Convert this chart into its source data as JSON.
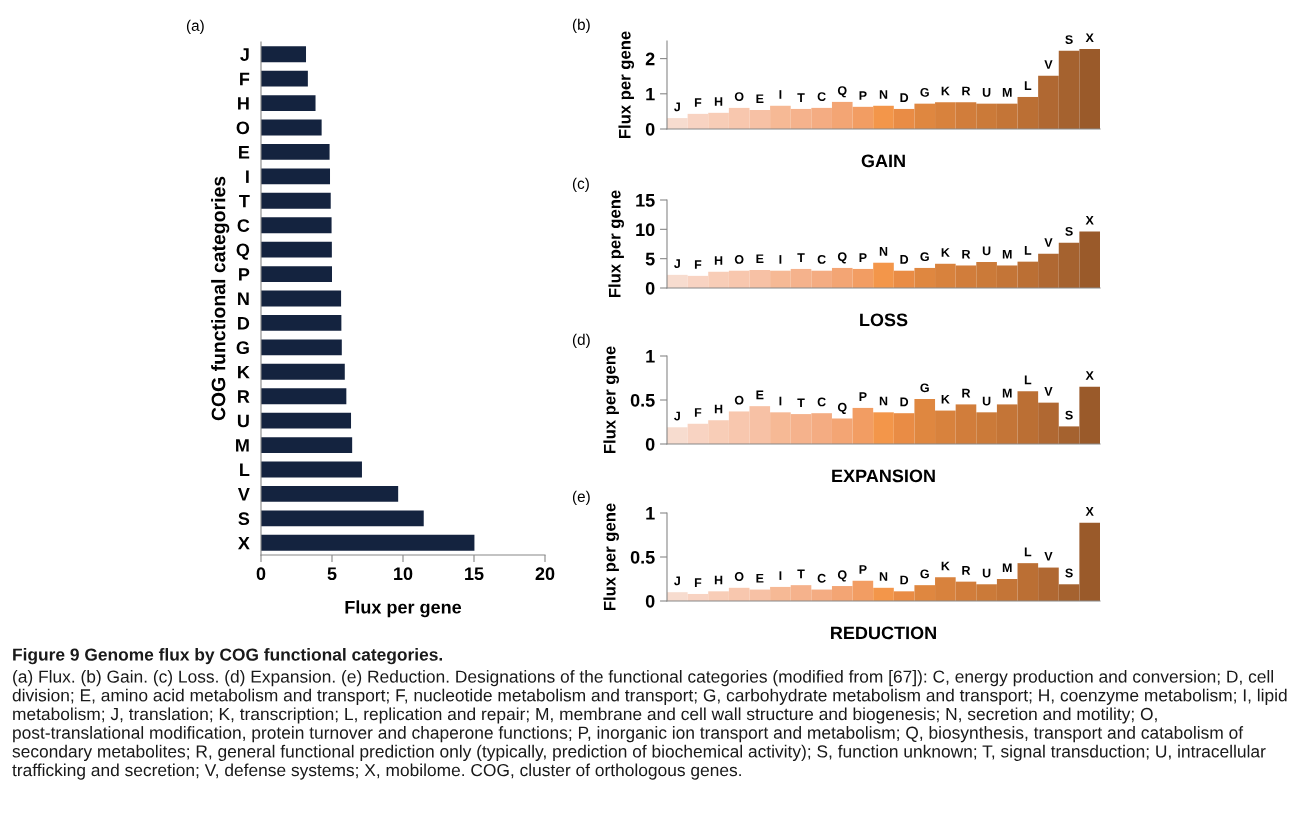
{
  "chart_data": [
    {
      "type": "bar",
      "orientation": "horizontal",
      "title": "(a)",
      "xlabel": "Flux per gene",
      "ylabel": "COG functional categories",
      "categories": [
        "J",
        "F",
        "H",
        "O",
        "E",
        "I",
        "T",
        "C",
        "Q",
        "P",
        "N",
        "D",
        "G",
        "K",
        "R",
        "U",
        "M",
        "L",
        "V",
        "S",
        "X"
      ],
      "values": [
        3.17,
        3.3,
        3.84,
        4.27,
        4.83,
        4.86,
        4.91,
        4.97,
        4.99,
        5.0,
        5.64,
        5.66,
        5.69,
        5.9,
        6.01,
        6.34,
        6.42,
        7.11,
        9.66,
        11.46,
        15.03
      ],
      "color": "#14233f",
      "xlim": [
        0,
        20
      ],
      "xticks": [
        0,
        5,
        10,
        15,
        20
      ],
      "grid": false,
      "annotations": [
        "Figure 9 Genome flux by COG functional categories.",
        "(a) Flux. (b) Gain. (c) Loss. (d) Expansion. (e) Reduction. Designations of the functional categories (modified from [67]): C, energy production and conversion; D, cell division; E, amino acid metabolism and transport; F, nucleotide metabolism and transport; G, carbohydrate metabolism and transport; H, coenzyme metabolism; I, lipid metabolism; J, translation; K, transcription; L, replication and repair; M, membrane and cell wall structure and biogenesis; N, secretion and motility; O, post-translational modification, protein turnover and chaperone functions; P, inorganic ion transport and metabolism; Q, biosynthesis, transport and catabolism of secondary metabolites; R, general functional prediction only (typically, prediction of biochemical activity); S, function unknown; T, signal transduction; U, intracellular trafficking and secretion; V, defense systems; X, mobilome. COG, cluster of orthologous genes."
      ]
    },
    {
      "type": "bar",
      "title": "(b)",
      "xlabel": "GAIN",
      "ylabel": "Flux per gene",
      "categories": [
        "J",
        "F",
        "H",
        "O",
        "E",
        "I",
        "T",
        "C",
        "Q",
        "P",
        "N",
        "D",
        "G",
        "K",
        "R",
        "U",
        "M",
        "L",
        "V",
        "S",
        "X"
      ],
      "values": [
        0.31,
        0.43,
        0.46,
        0.6,
        0.54,
        0.66,
        0.57,
        0.6,
        0.77,
        0.63,
        0.66,
        0.57,
        0.72,
        0.76,
        0.76,
        0.72,
        0.72,
        0.91,
        1.51,
        2.22,
        2.27
      ],
      "colors": [
        "#f7dccf",
        "#f8d3c2",
        "#f8cdb7",
        "#f8c7ae",
        "#f7c1a5",
        "#f6b995",
        "#f5b28c",
        "#f4ac82",
        "#f3a574",
        "#f29d63",
        "#f3964a",
        "#e98c45",
        "#df8740",
        "#d8823d",
        "#d17d3b",
        "#cb7a39",
        "#c47537",
        "#bb6f34",
        "#b06832",
        "#a5622f",
        "#9a5a2a"
      ],
      "ylim": [
        0,
        2.5
      ],
      "yticks": [
        0,
        1,
        2
      ],
      "grid": false
    },
    {
      "type": "bar",
      "title": "(c)",
      "xlabel": "LOSS",
      "ylabel": "Flux per gene",
      "categories": [
        "J",
        "F",
        "H",
        "O",
        "E",
        "I",
        "T",
        "C",
        "Q",
        "P",
        "N",
        "D",
        "G",
        "K",
        "R",
        "U",
        "M",
        "L",
        "V",
        "S",
        "X"
      ],
      "values": [
        2.24,
        2.07,
        2.77,
        2.95,
        3.07,
        2.95,
        3.25,
        2.95,
        3.42,
        3.25,
        4.31,
        2.95,
        3.42,
        4.13,
        3.84,
        4.43,
        3.84,
        4.49,
        5.84,
        7.73,
        9.62
      ],
      "colors": [
        "#f7dccf",
        "#f8d3c2",
        "#f8cdb7",
        "#f8c7ae",
        "#f7c1a5",
        "#f6b995",
        "#f5b28c",
        "#f4ac82",
        "#f3a574",
        "#f29d63",
        "#f3964a",
        "#e98c45",
        "#df8740",
        "#d8823d",
        "#d17d3b",
        "#cb7a39",
        "#c47537",
        "#bb6f34",
        "#b06832",
        "#a5622f",
        "#9a5a2a"
      ],
      "ylim": [
        0,
        15
      ],
      "yticks": [
        0,
        5,
        10,
        15
      ],
      "grid": false
    },
    {
      "type": "bar",
      "title": "(d)",
      "xlabel": "EXPANSION",
      "ylabel": "Flux per gene",
      "categories": [
        "J",
        "F",
        "H",
        "O",
        "E",
        "I",
        "T",
        "C",
        "Q",
        "P",
        "N",
        "D",
        "G",
        "K",
        "R",
        "U",
        "M",
        "L",
        "V",
        "S",
        "X"
      ],
      "values": [
        0.19,
        0.23,
        0.27,
        0.37,
        0.43,
        0.36,
        0.34,
        0.35,
        0.29,
        0.41,
        0.36,
        0.35,
        0.51,
        0.38,
        0.45,
        0.36,
        0.45,
        0.6,
        0.47,
        0.2,
        0.65
      ],
      "colors": [
        "#f7dccf",
        "#f8d3c2",
        "#f8cdb7",
        "#f8c7ae",
        "#f7c1a5",
        "#f6b995",
        "#f5b28c",
        "#f4ac82",
        "#f3a574",
        "#f29d63",
        "#f3964a",
        "#e98c45",
        "#df8740",
        "#d8823d",
        "#d17d3b",
        "#cb7a39",
        "#c47537",
        "#bb6f34",
        "#b06832",
        "#a5622f",
        "#9a5a2a"
      ],
      "ylim": [
        0,
        1
      ],
      "yticks": [
        0,
        0.5,
        1
      ],
      "grid": false
    },
    {
      "type": "bar",
      "title": "(e)",
      "xlabel": "REDUCTION",
      "ylabel": "Flux per gene",
      "categories": [
        "J",
        "F",
        "H",
        "O",
        "E",
        "I",
        "T",
        "C",
        "Q",
        "P",
        "N",
        "D",
        "G",
        "K",
        "R",
        "U",
        "M",
        "L",
        "V",
        "S",
        "X"
      ],
      "values": [
        0.1,
        0.08,
        0.11,
        0.15,
        0.13,
        0.16,
        0.18,
        0.13,
        0.17,
        0.23,
        0.15,
        0.11,
        0.18,
        0.27,
        0.22,
        0.19,
        0.25,
        0.43,
        0.38,
        0.19,
        0.89
      ],
      "colors": [
        "#f7dccf",
        "#f8d3c2",
        "#f8cdb7",
        "#f8c7ae",
        "#f7c1a5",
        "#f6b995",
        "#f5b28c",
        "#f4ac82",
        "#f3a574",
        "#f29d63",
        "#f3964a",
        "#e98c45",
        "#df8740",
        "#d8823d",
        "#d17d3b",
        "#cb7a39",
        "#c47537",
        "#bb6f34",
        "#b06832",
        "#a5622f",
        "#9a5a2a"
      ],
      "ylim": [
        0,
        1
      ],
      "yticks": [
        0,
        0.5,
        1
      ],
      "grid": false
    }
  ]
}
